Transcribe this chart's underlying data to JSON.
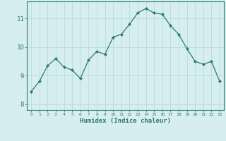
{
  "x": [
    0,
    1,
    2,
    3,
    4,
    5,
    6,
    7,
    8,
    9,
    10,
    11,
    12,
    13,
    14,
    15,
    16,
    17,
    18,
    19,
    20,
    21,
    22,
    23
  ],
  "y": [
    8.45,
    8.8,
    9.35,
    9.6,
    9.3,
    9.2,
    8.9,
    9.55,
    9.85,
    9.75,
    10.35,
    10.45,
    10.8,
    11.2,
    11.35,
    11.2,
    11.15,
    10.75,
    10.45,
    9.95,
    9.5,
    9.4,
    9.5,
    8.8
  ],
  "xlabel": "Humidex (Indice chaleur)",
  "xlim": [
    -0.5,
    23.5
  ],
  "ylim": [
    7.8,
    11.6
  ],
  "yticks": [
    8,
    9,
    10,
    11
  ],
  "xticks": [
    0,
    1,
    2,
    3,
    4,
    5,
    6,
    7,
    8,
    9,
    10,
    11,
    12,
    13,
    14,
    15,
    16,
    17,
    18,
    19,
    20,
    21,
    22,
    23
  ],
  "line_color": "#2d7b6e",
  "marker_color": "#2d7b6e",
  "bg_color": "#d6eef0",
  "grid_color": "#b0d8dc",
  "axis_label_color": "#2d7b6e",
  "tick_color": "#2d7b6e",
  "spine_color": "#2d7b6e"
}
